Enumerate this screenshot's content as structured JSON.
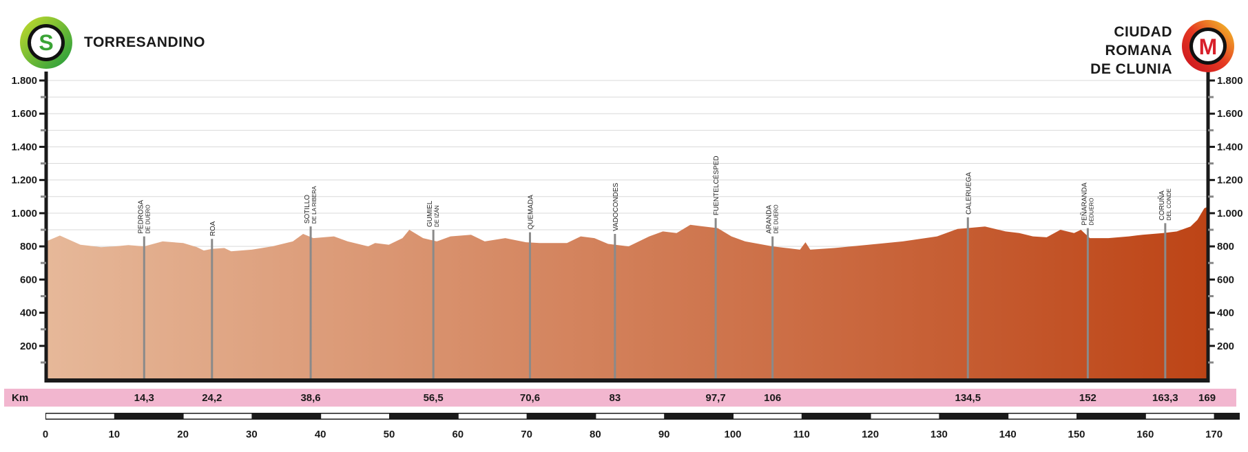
{
  "start": {
    "label": "TORRESANDINO",
    "badge": "S",
    "badge_color": "#3aa335"
  },
  "finish": {
    "label_lines": [
      "CIUDAD",
      "ROMANA",
      "DE CLUNIA"
    ],
    "badge": "M",
    "badge_color": "#d8202a"
  },
  "chart_data": {
    "type": "area",
    "title": "",
    "xlabel": "Km",
    "ylabel": "",
    "xlim": [
      0,
      170
    ],
    "ylim": [
      0,
      1800
    ],
    "y_ticks": [
      200,
      400,
      600,
      800,
      1000,
      1200,
      1400,
      1600,
      1800
    ],
    "y_tick_labels": [
      "200",
      "400",
      "600",
      "800",
      "1.000",
      "1.200",
      "1.400",
      "1.600",
      "1.800"
    ],
    "x_scale_ticks": [
      "0",
      "10",
      "20",
      "30",
      "40",
      "50",
      "60",
      "70",
      "80",
      "90",
      "100",
      "110",
      "120",
      "130",
      "140",
      "150",
      "160",
      "170"
    ],
    "grid": true,
    "fill_colors": [
      "#e6b899",
      "#bd4416"
    ],
    "profile": [
      [
        0,
        830
      ],
      [
        2,
        865
      ],
      [
        5,
        810
      ],
      [
        8,
        795
      ],
      [
        10,
        800
      ],
      [
        12,
        808
      ],
      [
        14.3,
        800
      ],
      [
        17,
        830
      ],
      [
        20,
        820
      ],
      [
        22,
        795
      ],
      [
        23,
        775
      ],
      [
        24.2,
        785
      ],
      [
        26,
        790
      ],
      [
        27,
        770
      ],
      [
        30,
        780
      ],
      [
        33,
        800
      ],
      [
        36,
        830
      ],
      [
        37.5,
        875
      ],
      [
        39,
        850
      ],
      [
        42,
        860
      ],
      [
        44,
        830
      ],
      [
        47,
        800
      ],
      [
        48,
        820
      ],
      [
        50,
        810
      ],
      [
        52,
        850
      ],
      [
        53,
        900
      ],
      [
        55,
        850
      ],
      [
        57,
        830
      ],
      [
        59,
        860
      ],
      [
        62,
        870
      ],
      [
        64,
        830
      ],
      [
        67,
        850
      ],
      [
        70,
        825
      ],
      [
        72,
        820
      ],
      [
        76,
        820
      ],
      [
        78,
        860
      ],
      [
        80,
        850
      ],
      [
        82,
        815
      ],
      [
        85,
        800
      ],
      [
        88,
        860
      ],
      [
        90,
        890
      ],
      [
        92,
        880
      ],
      [
        94,
        930
      ],
      [
        96,
        920
      ],
      [
        98,
        910
      ],
      [
        100,
        860
      ],
      [
        102,
        830
      ],
      [
        106,
        800
      ],
      [
        108,
        790
      ],
      [
        110,
        780
      ],
      [
        110.8,
        825
      ],
      [
        111.5,
        780
      ],
      [
        115,
        790
      ],
      [
        120,
        810
      ],
      [
        125,
        830
      ],
      [
        130,
        860
      ],
      [
        133,
        905
      ],
      [
        137,
        920
      ],
      [
        139,
        900
      ],
      [
        140,
        890
      ],
      [
        142,
        880
      ],
      [
        144,
        860
      ],
      [
        146,
        855
      ],
      [
        148,
        900
      ],
      [
        150,
        880
      ],
      [
        151,
        900
      ],
      [
        152.3,
        850
      ],
      [
        155,
        850
      ],
      [
        158,
        860
      ],
      [
        160,
        870
      ],
      [
        163,
        880
      ],
      [
        165,
        890
      ],
      [
        167,
        920
      ],
      [
        168,
        960
      ],
      [
        169,
        1030
      ]
    ],
    "waypoints": [
      {
        "km": 14.3,
        "km_label": "14,3",
        "name": "PEDROSA",
        "sub": "DE DUERO",
        "elev": 800
      },
      {
        "km": 24.2,
        "km_label": "24,2",
        "name": "ROA",
        "sub": "",
        "elev": 785
      },
      {
        "km": 38.6,
        "km_label": "38,6",
        "name": "SOTILLO",
        "sub": "DE LA RIBERA",
        "elev": 860
      },
      {
        "km": 56.5,
        "km_label": "56,5",
        "name": "GUMIEL",
        "sub": "DE IZÁN",
        "elev": 840
      },
      {
        "km": 70.6,
        "km_label": "70,6",
        "name": "QUEMADA",
        "sub": "",
        "elev": 825
      },
      {
        "km": 83,
        "km_label": "83",
        "name": "VADOCONDES",
        "sub": "",
        "elev": 815
      },
      {
        "km": 97.7,
        "km_label": "97,7",
        "name": "FUENTELCÉSPED",
        "sub": "",
        "elev": 910
      },
      {
        "km": 106,
        "km_label": "106",
        "name": "ARANDA",
        "sub": "DE DUERO",
        "elev": 800
      },
      {
        "km": 134.5,
        "km_label": "134,5",
        "name": "CALERUEGA",
        "sub": "",
        "elev": 915
      },
      {
        "km": 152,
        "km_label": "152",
        "name": "PEÑARANDA",
        "sub": "DEDUERO",
        "elev": 850
      },
      {
        "km": 163.3,
        "km_label": "163,3",
        "name": "CORUÑA",
        "sub": "DEL CONDE",
        "elev": 880
      }
    ],
    "finish_km_label": "169"
  },
  "km_band_color": "#f2b6cf"
}
